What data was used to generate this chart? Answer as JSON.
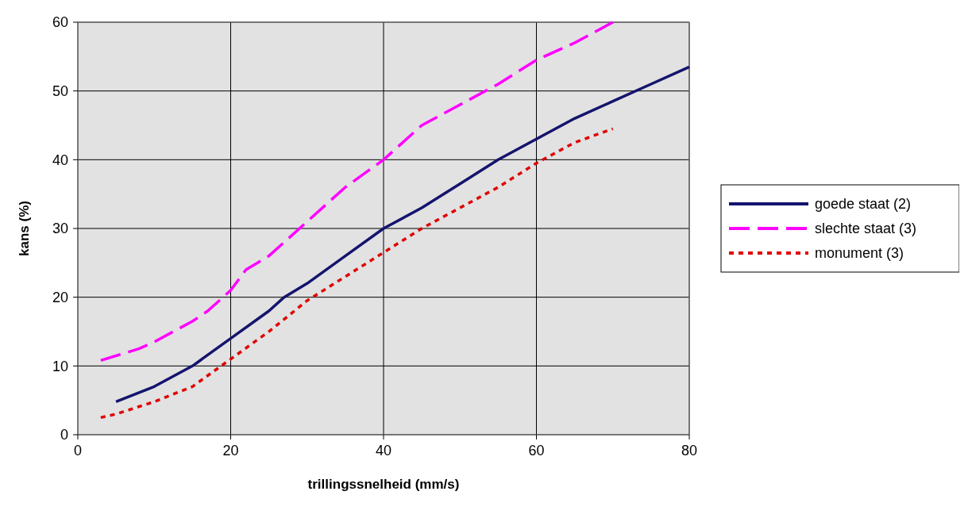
{
  "chart_data": {
    "type": "line",
    "xlabel": "trillingssnelheid (mm/s)",
    "ylabel": "kans (%)",
    "xlim": [
      0,
      80
    ],
    "xticks": [
      0,
      20,
      40,
      60,
      80
    ],
    "ylim": [
      0,
      60
    ],
    "yticks": [
      0,
      10,
      20,
      30,
      40,
      50,
      60
    ],
    "grid": true,
    "legend": "right",
    "marker": "none",
    "series": [
      {
        "name": "goede staat (2)",
        "color": "#14146e",
        "line_style": "solid",
        "x": [
          5,
          10,
          15,
          20,
          25,
          27,
          30,
          35,
          40,
          45,
          50,
          55,
          60,
          65,
          70,
          75,
          80
        ],
        "values": [
          4.8,
          7,
          10,
          14,
          18,
          20,
          22,
          26,
          30,
          33,
          36.5,
          40,
          43,
          46,
          48.5,
          51,
          53.5
        ]
      },
      {
        "name": "slechte staat (3)",
        "color": "#ff00ff",
        "line_style": "dashed",
        "x": [
          3,
          8,
          10,
          15,
          17,
          20,
          22,
          25,
          30,
          35,
          40,
          45,
          50,
          55,
          60,
          65,
          70
        ],
        "values": [
          10.8,
          12.5,
          13.5,
          16.5,
          18,
          21,
          24,
          26,
          31,
          36,
          40,
          45,
          48,
          51,
          54.5,
          57,
          60
        ]
      },
      {
        "name": "monument (3)",
        "color": "#e00000",
        "line_style": "dotted",
        "x": [
          3,
          5,
          10,
          15,
          20,
          25,
          30,
          35,
          40,
          45,
          50,
          55,
          60,
          65,
          70
        ],
        "values": [
          2.5,
          3,
          4.8,
          7,
          11,
          15,
          19.5,
          23,
          26.5,
          30,
          33,
          36,
          39.5,
          42.5,
          44.5
        ]
      }
    ]
  }
}
